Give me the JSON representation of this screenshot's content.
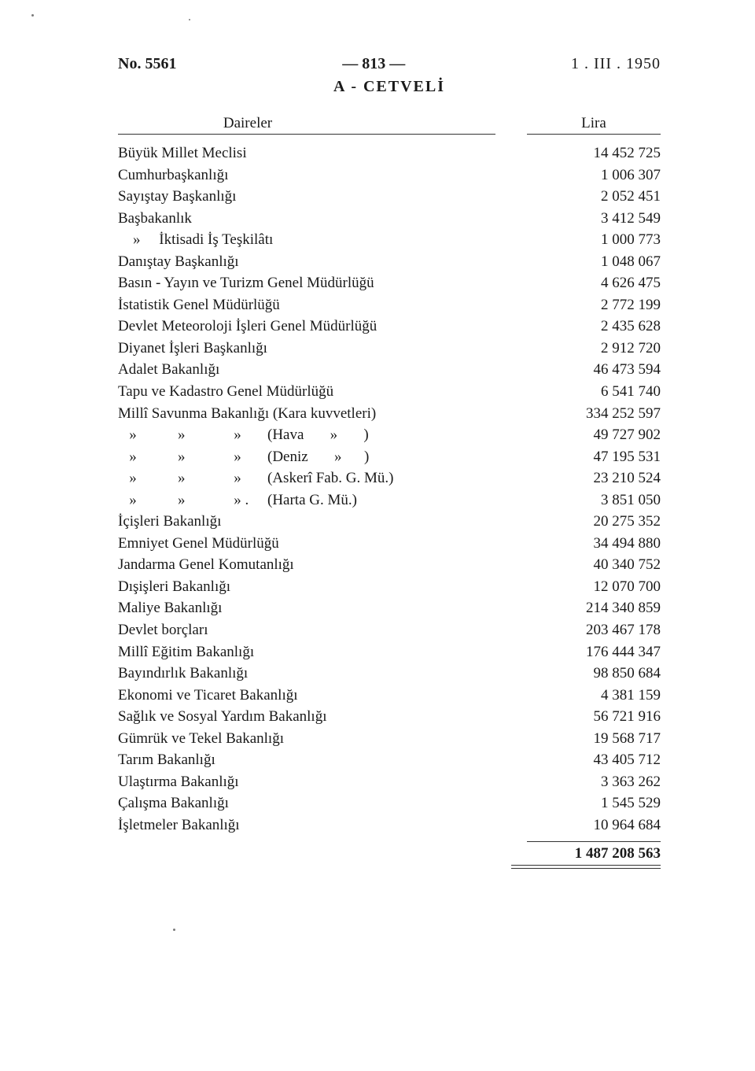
{
  "header": {
    "left": "No. 5561",
    "center": "— 813 —",
    "right": "1 . III . 1950"
  },
  "title": "A - CETVELİ",
  "columns": {
    "daireler": "Daireler",
    "lira": "Lira"
  },
  "rows": [
    {
      "label": "Büyük Millet Meclisi",
      "amount": "14 452 725"
    },
    {
      "label": "Cumhurbaşkanlığı",
      "amount": "1 006 307"
    },
    {
      "label": "Sayıştay Başkanlığı",
      "amount": "2 052 451"
    },
    {
      "label": "Başbakanlık",
      "amount": "3 412 549"
    },
    {
      "label": "    »     İktisadi İş Teşkilâtı",
      "amount": "1 000 773"
    },
    {
      "label": "Danıştay Başkanlığı",
      "amount": "1 048 067"
    },
    {
      "label": "Basın - Yayın ve Turizm Genel Müdürlüğü",
      "amount": "4 626 475"
    },
    {
      "label": "İstatistik Genel Müdürlüğü",
      "amount": "2 772 199"
    },
    {
      "label": "Devlet Meteoroloji İşleri Genel Müdürlüğü",
      "amount": "2 435 628"
    },
    {
      "label": "Diyanet İşleri Başkanlığı",
      "amount": "2 912 720"
    },
    {
      "label": "Adalet Bakanlığı",
      "amount": "46 473 594"
    },
    {
      "label": "Tapu ve Kadastro Genel Müdürlüğü",
      "amount": "6 541 740"
    },
    {
      "label": "Millî Savunma Bakanlığı (Kara kuvvetleri)",
      "amount": "334 252 597"
    },
    {
      "label": "   »           »             »       (Hava       »       )",
      "amount": "49 727 902"
    },
    {
      "label": "   »           »             »       (Deniz       »      )",
      "amount": "47 195 531"
    },
    {
      "label": "   »           »             »       (Askerî Fab. G. Mü.)",
      "amount": "23 210 524"
    },
    {
      "label": "   »           »             » .     (Harta G. Mü.)",
      "amount": "3 851 050"
    },
    {
      "label": "İçişleri Bakanlığı",
      "amount": "20 275 352"
    },
    {
      "label": "Emniyet Genel Müdürlüğü",
      "amount": "34 494 880"
    },
    {
      "label": "Jandarma Genel Komutanlığı",
      "amount": "40 340 752"
    },
    {
      "label": "Dışişleri Bakanlığı",
      "amount": "12 070 700"
    },
    {
      "label": "Maliye Bakanlığı",
      "amount": "214 340 859"
    },
    {
      "label": "Devlet borçları",
      "amount": "203 467 178"
    },
    {
      "label": "Millî Eğitim Bakanlığı",
      "amount": "176 444 347"
    },
    {
      "label": "Bayındırlık Bakanlığı",
      "amount": "98 850 684"
    },
    {
      "label": "Ekonomi ve Ticaret Bakanlığı",
      "amount": "4 381 159"
    },
    {
      "label": "Sağlık ve Sosyal Yardım Bakanlığı",
      "amount": "56 721 916"
    },
    {
      "label": "Gümrük ve Tekel Bakanlığı",
      "amount": "19 568 717"
    },
    {
      "label": "Tarım Bakanlığı",
      "amount": "43 405 712"
    },
    {
      "label": "Ulaştırma Bakanlığı",
      "amount": "3 363 262"
    },
    {
      "label": "Çalışma Bakanlığı",
      "amount": "1 545 529"
    },
    {
      "label": "İşletmeler Bakanlığı",
      "amount": "10 964 684"
    }
  ],
  "total": "1 487 208 563"
}
